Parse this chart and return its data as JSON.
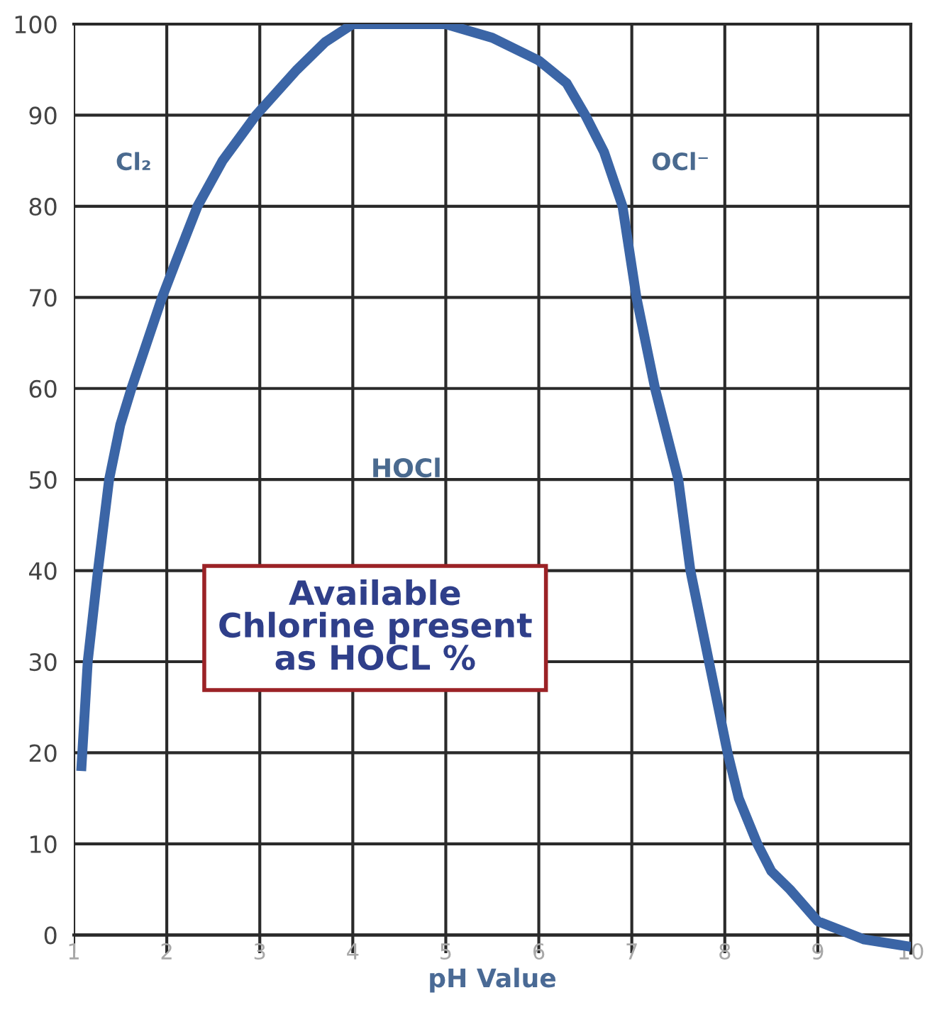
{
  "chart_data": {
    "type": "line",
    "xlabel": "pH Value",
    "series": [
      {
        "color": "#3b65a6",
        "x": [
          1.08,
          1.15,
          1.26,
          1.38,
          1.5,
          1.62,
          1.95,
          2.1,
          2.33,
          2.6,
          2.96,
          3.4,
          3.7,
          4.0,
          4.5,
          5.0,
          5.5,
          6.0,
          6.3,
          6.5,
          6.7,
          6.9,
          7.05,
          7.25,
          7.5,
          7.63,
          7.83,
          8.03,
          8.15,
          8.35,
          8.5,
          8.7,
          9.0,
          9.5,
          10.0
        ],
        "values": [
          18,
          30,
          40,
          50,
          56,
          60,
          70,
          74,
          80,
          85,
          90,
          95,
          98,
          100,
          100,
          100,
          98.5,
          96,
          93.5,
          90,
          86,
          80,
          70,
          60,
          50,
          40,
          30,
          20,
          15,
          10,
          7,
          5,
          1.5,
          -0.5,
          -1.3
        ]
      }
    ],
    "xlim": [
      1,
      10
    ],
    "xticks": [
      1,
      2,
      3,
      4,
      5,
      6,
      7,
      8,
      9,
      10
    ],
    "ylim": [
      -2,
      100
    ],
    "yticks": [
      0,
      10,
      20,
      30,
      40,
      50,
      60,
      70,
      80,
      90,
      100
    ],
    "grid": true,
    "legend": false,
    "marker": "none",
    "line_style": "solid",
    "annotations": [
      "Cl₂",
      "HOCl",
      "OCl⁻",
      "Available\nChlorine present\nas HOCL %"
    ]
  }
}
